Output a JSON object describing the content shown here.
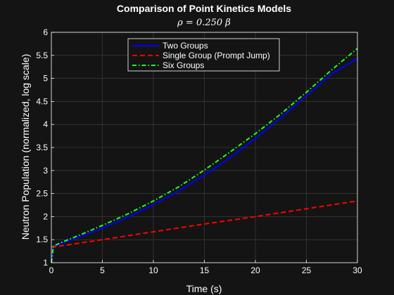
{
  "chart_data": {
    "type": "line",
    "title": "Comparison of Point Kinetics Models",
    "subtitle": "ρ  =  0.250 β",
    "xlabel": "Time (s)",
    "ylabel": "Neutron Population (normalized, log scale)",
    "xlim": [
      0,
      30
    ],
    "ylim": [
      1,
      6
    ],
    "xticks": [
      "0",
      "5",
      "10",
      "15",
      "20",
      "25",
      "30"
    ],
    "yticks": [
      "1",
      "1.5",
      "2",
      "2.5",
      "3",
      "3.5",
      "4",
      "4.5",
      "5",
      "5.5",
      "6"
    ],
    "grid": true,
    "legend_position": "top-center",
    "series": [
      {
        "name": "Two Groups",
        "color": "#0000ff",
        "dash": "solid",
        "x": [
          0,
          0.2,
          0.5,
          1,
          2,
          3,
          5,
          7.5,
          10,
          12.5,
          15,
          17.5,
          20,
          22.5,
          25,
          27.5,
          30
        ],
        "y": [
          1.0,
          1.36,
          1.38,
          1.42,
          1.5,
          1.58,
          1.75,
          1.99,
          2.26,
          2.56,
          2.9,
          3.28,
          3.7,
          4.15,
          4.62,
          5.1,
          5.43
        ]
      },
      {
        "name": "Single Group (Prompt Jump)",
        "color": "#ff0000",
        "dash": "dashed",
        "x": [
          0,
          5,
          10,
          15,
          20,
          25,
          30
        ],
        "y": [
          1.333,
          1.5,
          1.67,
          1.84,
          2.0,
          2.17,
          2.34
        ]
      },
      {
        "name": "Six Groups",
        "color": "#22ff22",
        "dash": "dashdot",
        "x": [
          0,
          0.2,
          0.5,
          1,
          2,
          3,
          5,
          7.5,
          10,
          12.5,
          15,
          17.5,
          20,
          22.5,
          25,
          27.5,
          30
        ],
        "y": [
          1.0,
          1.36,
          1.39,
          1.44,
          1.53,
          1.62,
          1.81,
          2.06,
          2.34,
          2.65,
          3.01,
          3.4,
          3.8,
          4.23,
          4.7,
          5.19,
          5.65
        ]
      }
    ]
  }
}
